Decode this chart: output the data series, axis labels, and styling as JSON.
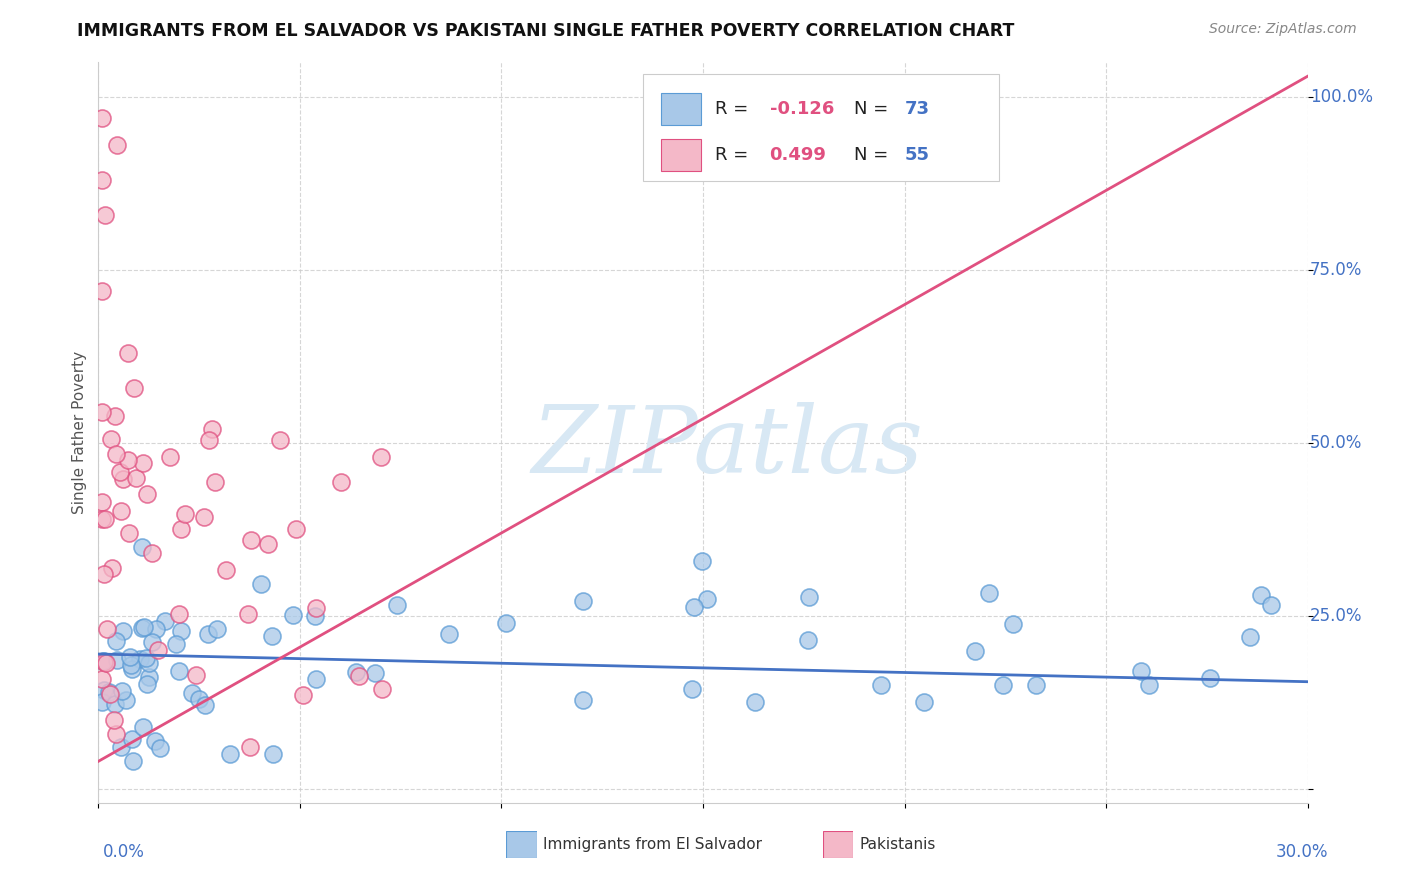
{
  "title": "IMMIGRANTS FROM EL SALVADOR VS PAKISTANI SINGLE FATHER POVERTY CORRELATION CHART",
  "source": "Source: ZipAtlas.com",
  "ylabel": "Single Father Poverty",
  "legend1_r": "-0.126",
  "legend1_n": "73",
  "legend2_r": "0.499",
  "legend2_n": "55",
  "blue_color": "#a8c8e8",
  "blue_edge_color": "#5b9bd5",
  "pink_color": "#f4b8c8",
  "pink_edge_color": "#e05080",
  "blue_line_color": "#4472c4",
  "pink_line_color": "#e05080",
  "tick_label_color": "#4472c4",
  "watermark_color": "#d8e8f4",
  "background_color": "#ffffff",
  "xlim": [
    0.0,
    0.3
  ],
  "ylim": [
    -0.02,
    1.05
  ],
  "blue_line_x": [
    0.0,
    0.3
  ],
  "blue_line_y": [
    0.195,
    0.155
  ],
  "pink_line_x": [
    0.0,
    0.3
  ],
  "pink_line_y": [
    0.04,
    1.03
  ]
}
